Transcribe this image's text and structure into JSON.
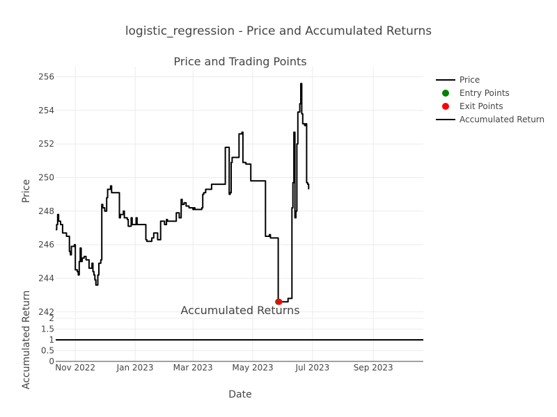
{
  "title": "logistic_regression - Price and Accumulated Returns",
  "chart_data": [
    {
      "type": "line",
      "title": "Price and Trading Points",
      "ylabel": "Price",
      "xlim": [
        "2022-10-12",
        "2023-10-22"
      ],
      "ylim": [
        241.7,
        256.6
      ],
      "grid": true,
      "y_ticks": [
        242,
        244,
        246,
        248,
        250,
        252,
        254,
        256
      ],
      "series": [
        {
          "name": "Price",
          "color": "#000000",
          "step": true,
          "points": [
            [
              "2022-10-12",
              246.9
            ],
            [
              "2022-10-13",
              247.2
            ],
            [
              "2022-10-14",
              247.8
            ],
            [
              "2022-10-15",
              247.4
            ],
            [
              "2022-10-17",
              247.2
            ],
            [
              "2022-10-19",
              246.7
            ],
            [
              "2022-10-23",
              246.5
            ],
            [
              "2022-10-25",
              246.5
            ],
            [
              "2022-10-26",
              245.6
            ],
            [
              "2022-10-27",
              245.4
            ],
            [
              "2022-10-28",
              245.9
            ],
            [
              "2022-10-31",
              246.0
            ],
            [
              "2022-11-01",
              244.5
            ],
            [
              "2022-11-03",
              244.4
            ],
            [
              "2022-11-04",
              244.2
            ],
            [
              "2022-11-05",
              245.0
            ],
            [
              "2022-11-06",
              245.8
            ],
            [
              "2022-11-07",
              245.0
            ],
            [
              "2022-11-08",
              245.2
            ],
            [
              "2022-11-10",
              245.3
            ],
            [
              "2022-11-12",
              245.1
            ],
            [
              "2022-11-15",
              244.6
            ],
            [
              "2022-11-18",
              244.9
            ],
            [
              "2022-11-19",
              244.4
            ],
            [
              "2022-11-20",
              244.2
            ],
            [
              "2022-11-21",
              243.9
            ],
            [
              "2022-11-22",
              243.6
            ],
            [
              "2022-11-23",
              243.6
            ],
            [
              "2022-11-24",
              244.2
            ],
            [
              "2022-11-25",
              244.9
            ],
            [
              "2022-11-27",
              245.1
            ],
            [
              "2022-11-28",
              248.4
            ],
            [
              "2022-11-29",
              248.2
            ],
            [
              "2022-12-01",
              248.0
            ],
            [
              "2022-12-03",
              248.8
            ],
            [
              "2022-12-04",
              249.3
            ],
            [
              "2022-12-07",
              249.5
            ],
            [
              "2022-12-08",
              249.1
            ],
            [
              "2022-12-16",
              247.6
            ],
            [
              "2022-12-17",
              247.8
            ],
            [
              "2022-12-20",
              248.0
            ],
            [
              "2022-12-21",
              247.6
            ],
            [
              "2022-12-24",
              247.5
            ],
            [
              "2022-12-25",
              247.1
            ],
            [
              "2022-12-28",
              247.6
            ],
            [
              "2022-12-29",
              247.2
            ],
            [
              "2023-01-02",
              247.6
            ],
            [
              "2023-01-03",
              247.2
            ],
            [
              "2023-01-04",
              247.2
            ],
            [
              "2023-01-12",
              246.3
            ],
            [
              "2023-01-13",
              246.2
            ],
            [
              "2023-01-18",
              246.4
            ],
            [
              "2023-01-20",
              246.7
            ],
            [
              "2023-01-24",
              246.3
            ],
            [
              "2023-01-26",
              246.3
            ],
            [
              "2023-01-27",
              247.4
            ],
            [
              "2023-01-31",
              247.2
            ],
            [
              "2023-02-02",
              247.5
            ],
            [
              "2023-02-03",
              247.4
            ],
            [
              "2023-02-12",
              247.9
            ],
            [
              "2023-02-15",
              247.6
            ],
            [
              "2023-02-17",
              248.7
            ],
            [
              "2023-02-18",
              248.4
            ],
            [
              "2023-02-20",
              248.5
            ],
            [
              "2023-02-22",
              248.3
            ],
            [
              "2023-02-25",
              248.2
            ],
            [
              "2023-03-01",
              248.1
            ],
            [
              "2023-03-02",
              248.2
            ],
            [
              "2023-03-03",
              248.1
            ],
            [
              "2023-03-10",
              248.2
            ],
            [
              "2023-03-11",
              249.0
            ],
            [
              "2023-03-12",
              249.1
            ],
            [
              "2023-03-14",
              249.3
            ],
            [
              "2023-03-20",
              249.6
            ],
            [
              "2023-04-03",
              251.8
            ],
            [
              "2023-04-07",
              249.0
            ],
            [
              "2023-04-08",
              249.1
            ],
            [
              "2023-04-09",
              250.9
            ],
            [
              "2023-04-10",
              251.2
            ],
            [
              "2023-04-17",
              252.6
            ],
            [
              "2023-04-20",
              252.7
            ],
            [
              "2023-04-21",
              250.9
            ],
            [
              "2023-04-24",
              250.8
            ],
            [
              "2023-04-29",
              249.8
            ],
            [
              "2023-05-14",
              246.5
            ],
            [
              "2023-05-16",
              246.5
            ],
            [
              "2023-05-18",
              246.6
            ],
            [
              "2023-05-19",
              246.4
            ],
            [
              "2023-05-27",
              242.6
            ],
            [
              "2023-06-06",
              242.8
            ],
            [
              "2023-06-10",
              248.2
            ],
            [
              "2023-06-11",
              249.7
            ],
            [
              "2023-06-12",
              252.7
            ],
            [
              "2023-06-13",
              247.6
            ],
            [
              "2023-06-14",
              248.0
            ],
            [
              "2023-06-15",
              252.0
            ],
            [
              "2023-06-16",
              253.9
            ],
            [
              "2023-06-18",
              254.4
            ],
            [
              "2023-06-19",
              255.6
            ],
            [
              "2023-06-20",
              253.8
            ],
            [
              "2023-06-21",
              253.2
            ],
            [
              "2023-06-23",
              253.1
            ],
            [
              "2023-06-24",
              253.2
            ],
            [
              "2023-06-25",
              249.7
            ],
            [
              "2023-06-26",
              249.6
            ],
            [
              "2023-06-27",
              249.3
            ]
          ]
        },
        {
          "name": "Entry Points",
          "color": "#008000",
          "mode": "markers",
          "points": [
            [
              "2023-05-27",
              242.6
            ]
          ]
        },
        {
          "name": "Exit Points",
          "color": "#ff0000",
          "mode": "markers",
          "points": [
            [
              "2023-05-28",
              242.6
            ]
          ]
        }
      ]
    },
    {
      "type": "line",
      "title": "Accumulated Returns",
      "xlabel": "Date",
      "ylabel": "Accumulated Return",
      "xlim": [
        "2022-10-12",
        "2023-10-22"
      ],
      "ylim": [
        0,
        2
      ],
      "grid": true,
      "y_ticks": [
        "0",
        "0.5",
        "1",
        "1.5",
        "2"
      ],
      "x_ticks": [
        {
          "date": "2022-11-01",
          "label": "Nov 2022"
        },
        {
          "date": "2023-01-01",
          "label": "Jan 2023"
        },
        {
          "date": "2023-03-01",
          "label": "Mar 2023"
        },
        {
          "date": "2023-05-01",
          "label": "May 2023"
        },
        {
          "date": "2023-07-01",
          "label": "Jul 2023"
        },
        {
          "date": "2023-09-01",
          "label": "Sep 2023"
        }
      ],
      "series": [
        {
          "name": "Accumulated Return",
          "color": "#000000",
          "points": [
            [
              "2022-10-12",
              1
            ],
            [
              "2023-10-22",
              1
            ]
          ]
        }
      ]
    }
  ],
  "legend": {
    "position": "right",
    "items": [
      {
        "label": "Price",
        "kind": "line",
        "color": "#000000"
      },
      {
        "label": "Entry Points",
        "kind": "marker",
        "color": "#008000"
      },
      {
        "label": "Exit Points",
        "kind": "marker",
        "color": "#ff0000"
      },
      {
        "label": "Accumulated Return",
        "kind": "line",
        "color": "#000000"
      }
    ]
  }
}
